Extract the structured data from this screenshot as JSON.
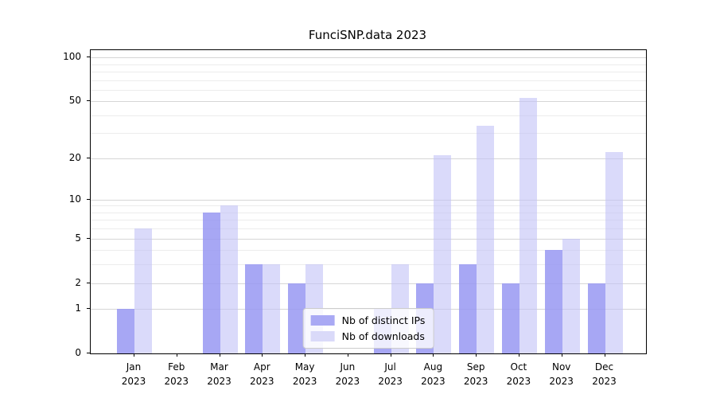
{
  "chart_data": {
    "type": "bar",
    "title": "FunciSNP.data 2023",
    "categories": [
      "Jan",
      "Feb",
      "Mar",
      "Apr",
      "May",
      "Jun",
      "Jul",
      "Aug",
      "Sep",
      "Oct",
      "Nov",
      "Dec"
    ],
    "category_year": "2023",
    "series": [
      {
        "name": "Nb of distinct IPs",
        "values": [
          1,
          0,
          8,
          3,
          2,
          0,
          1,
          2,
          3,
          2,
          4,
          2
        ],
        "bar_color": "rgba(152,152,242,0.85)",
        "legend_color": "#a9a9f4"
      },
      {
        "name": "Nb of downloads",
        "values": [
          6,
          0,
          9,
          3,
          3,
          0,
          3,
          21,
          34,
          53,
          5,
          22
        ],
        "bar_color": "rgba(193,193,247,0.6)",
        "legend_color": "#dadaf9"
      }
    ],
    "yscale": "log1p",
    "ylim": [
      0,
      112
    ],
    "yticks": [
      0,
      1,
      2,
      5,
      10,
      20,
      50,
      100
    ],
    "minor_gridlines": [
      3,
      4,
      6,
      7,
      8,
      9,
      30,
      40,
      60,
      70,
      80,
      90
    ],
    "grid_major_color": "#d6d6d6",
    "grid_minor_color": "#ececec",
    "axis_color": "#000000",
    "legend_position": "lower center",
    "legend_background": "rgba(255,255,255,0.8)",
    "legend_border_color": "#cccccc"
  }
}
